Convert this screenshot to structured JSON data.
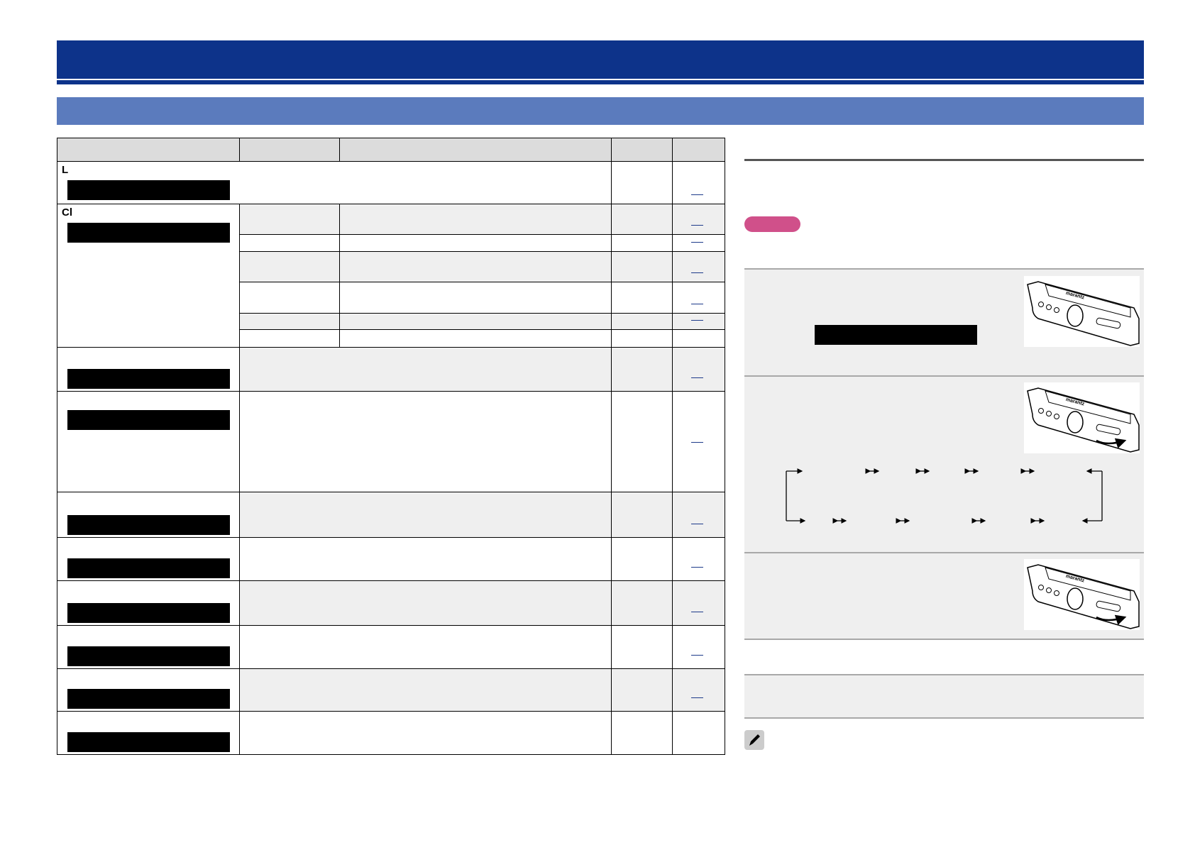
{
  "header": {
    "title": "",
    "subtitle": ""
  },
  "table": {
    "row_labels": {
      "l": "L",
      "cl": "Cl"
    },
    "colors": {
      "header": "#dcdcdc",
      "shade": "#efefef",
      "link": "#1d3a8a"
    }
  },
  "right_panel": {
    "badge_color": "#d0508a",
    "note_icon": "pencil-icon"
  },
  "colors": {
    "title_bar": "#0d338a",
    "sub_bar": "#5b7bbd"
  }
}
